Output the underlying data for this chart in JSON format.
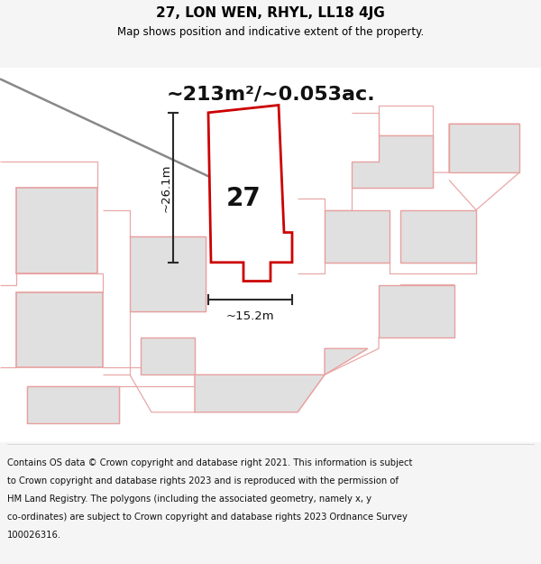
{
  "title": "27, LON WEN, RHYL, LL18 4JG",
  "subtitle": "Map shows position and indicative extent of the property.",
  "area_text": "~213m²/~0.053ac.",
  "label_27": "27",
  "dim_height": "~26.1m",
  "dim_width": "~15.2m",
  "footer_line1": "Contains OS data © Crown copyright and database right 2021. This information is subject",
  "footer_line2": "to Crown copyright and database rights 2023 and is reproduced with the permission of",
  "footer_line3": "HM Land Registry. The polygons (including the associated geometry, namely x, y",
  "footer_line4": "co-ordinates) are subject to Crown copyright and database rights 2023 Ordnance Survey",
  "footer_line5": "100026316.",
  "bg_color": "#f5f5f5",
  "map_bg": "#ffffff",
  "plot_border_color": "#cc0000",
  "plot_fill": "#ffffff",
  "neighbor_fill": "#e0e0e0",
  "neighbor_stroke": "#e8a0a0",
  "road_color": "#e8a8a8",
  "dim_line_color": "#2a2a2a",
  "title_color": "#000000",
  "footer_color": "#111111",
  "road_gray_color": "#888888",
  "road_gray_color2": "#aaaaaa"
}
